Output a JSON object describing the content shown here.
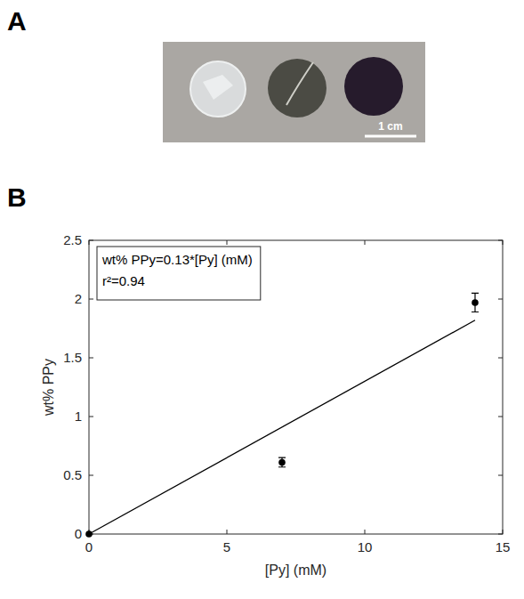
{
  "figure": {
    "panel_labels": [
      "A",
      "B"
    ]
  },
  "panel_a": {
    "scale_bar": "1 cm"
  },
  "chart_data": {
    "type": "scatter",
    "x_label": "[Py] (mM)",
    "y_label": "wt% PPy",
    "annotations": [
      "wt% PPy=0.13*[Py] (mM)",
      "r²=0.94"
    ],
    "series": [
      {
        "type": "scatter",
        "marker": "circle",
        "color": "#000000",
        "x": [
          0,
          7,
          14
        ],
        "values": [
          0,
          0.61,
          1.97
        ],
        "error": [
          0,
          0.04,
          0.08
        ]
      },
      {
        "type": "line",
        "line_style": "solid",
        "color": "#000000",
        "x": [
          0,
          14
        ],
        "values": [
          0,
          1.82
        ]
      }
    ],
    "xlim": [
      0,
      15
    ],
    "xticks": [
      0,
      5,
      10,
      15
    ],
    "ylim": [
      0,
      2.5
    ],
    "yticks": [
      0,
      0.5,
      1,
      1.5,
      2,
      2.5
    ],
    "grid": false
  }
}
